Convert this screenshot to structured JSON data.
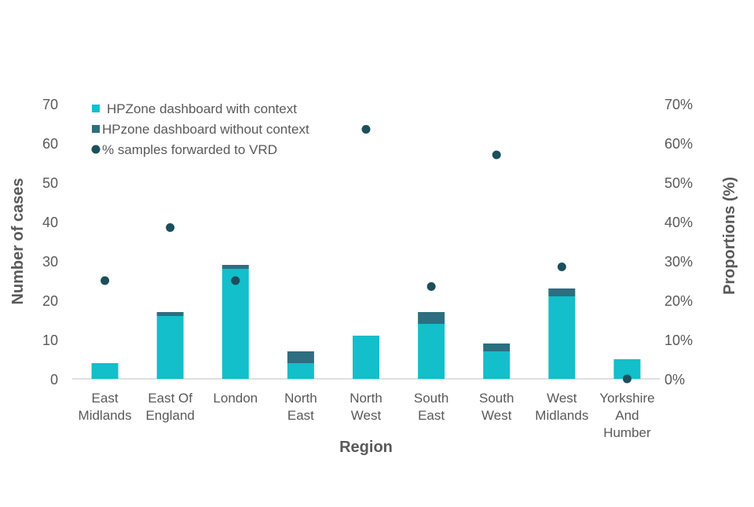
{
  "chart_data": {
    "type": "bar",
    "stacked": true,
    "categories": [
      [
        "East",
        "Midlands"
      ],
      [
        "East Of",
        "England"
      ],
      [
        "London"
      ],
      [
        "North",
        "East"
      ],
      [
        "North",
        "West"
      ],
      [
        "South",
        "East"
      ],
      [
        "South",
        "West"
      ],
      [
        "West",
        "Midlands"
      ],
      [
        "Yorkshire",
        "And",
        "Humber"
      ]
    ],
    "series": [
      {
        "name": "HPZone dashboard with context",
        "kind": "bar",
        "axis": "left",
        "color": "#12bfca",
        "values": [
          4,
          16,
          28,
          4,
          11,
          14,
          7,
          21,
          5
        ]
      },
      {
        "name": "HPzone dashboard without context",
        "kind": "bar",
        "axis": "left",
        "color": "#2d6e80",
        "values": [
          0,
          1,
          1,
          3,
          0,
          3,
          2,
          2,
          0
        ]
      },
      {
        "name": "% samples forwarded to VRD",
        "kind": "scatter",
        "axis": "right",
        "color": "#1b4f5c",
        "values": [
          25,
          38.5,
          25,
          null,
          63.5,
          23.5,
          57,
          28.5,
          0
        ]
      }
    ],
    "xlabel": "Region",
    "ylabel": "Number of cases",
    "y2label": "Proportions (%)",
    "ylim": [
      0,
      70
    ],
    "y2lim": [
      0,
      70
    ],
    "yticks": [
      "0",
      "10",
      "20",
      "30",
      "40",
      "50",
      "60",
      "70"
    ],
    "y2ticks": [
      "0%",
      "10%",
      "20%",
      "30%",
      "40%",
      "50%",
      "60%",
      "70%"
    ],
    "legend": "top-left",
    "grid": false
  }
}
